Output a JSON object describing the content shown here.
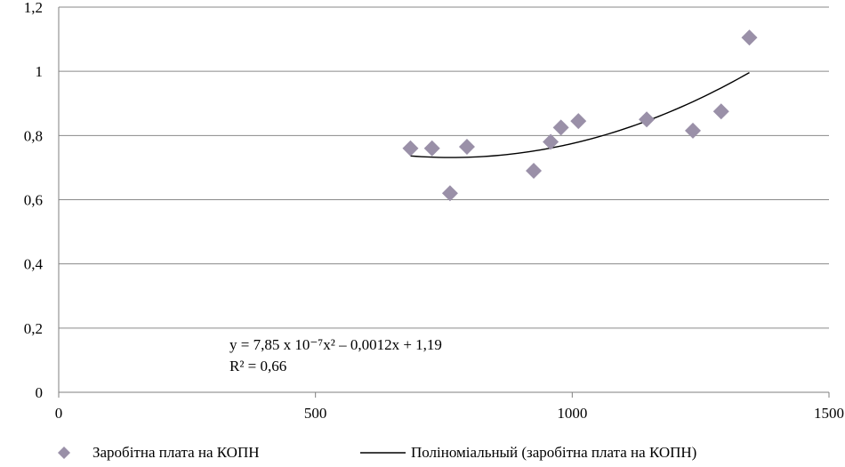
{
  "chart_data": {
    "type": "scatter",
    "xlim": [
      0,
      1500
    ],
    "ylim": [
      0,
      1.2
    ],
    "x_ticks": [
      "0",
      "500",
      "1000",
      "1500"
    ],
    "y_ticks": [
      "0",
      "0,2",
      "0,4",
      "0,6",
      "0,8",
      "1",
      "1,2"
    ],
    "grid": "horizontal",
    "legend_position": "bottom",
    "marker_color": "#9a90a8",
    "trend_color": "#000000",
    "series": [
      {
        "name": "Заробітна плата на КОПН",
        "points": [
          {
            "x": 685,
            "y": 0.76
          },
          {
            "x": 727,
            "y": 0.76
          },
          {
            "x": 762,
            "y": 0.62
          },
          {
            "x": 795,
            "y": 0.765
          },
          {
            "x": 925,
            "y": 0.69
          },
          {
            "x": 958,
            "y": 0.78
          },
          {
            "x": 978,
            "y": 0.825
          },
          {
            "x": 1012,
            "y": 0.845
          },
          {
            "x": 1145,
            "y": 0.85
          },
          {
            "x": 1235,
            "y": 0.815
          },
          {
            "x": 1290,
            "y": 0.875
          },
          {
            "x": 1345,
            "y": 1.105
          }
        ]
      }
    ],
    "trendline": {
      "name": "Полiномiальный (заробітна плата на КОПН)",
      "x_range": [
        685,
        1345
      ],
      "coefficients": {
        "a": 7.85e-07,
        "b": -0.0012,
        "c": 1.19
      },
      "equation_line1": "y = 7,85 x 10⁻⁷x² – 0,0012x + 1,19",
      "equation_line2": "R² = 0,66"
    }
  }
}
